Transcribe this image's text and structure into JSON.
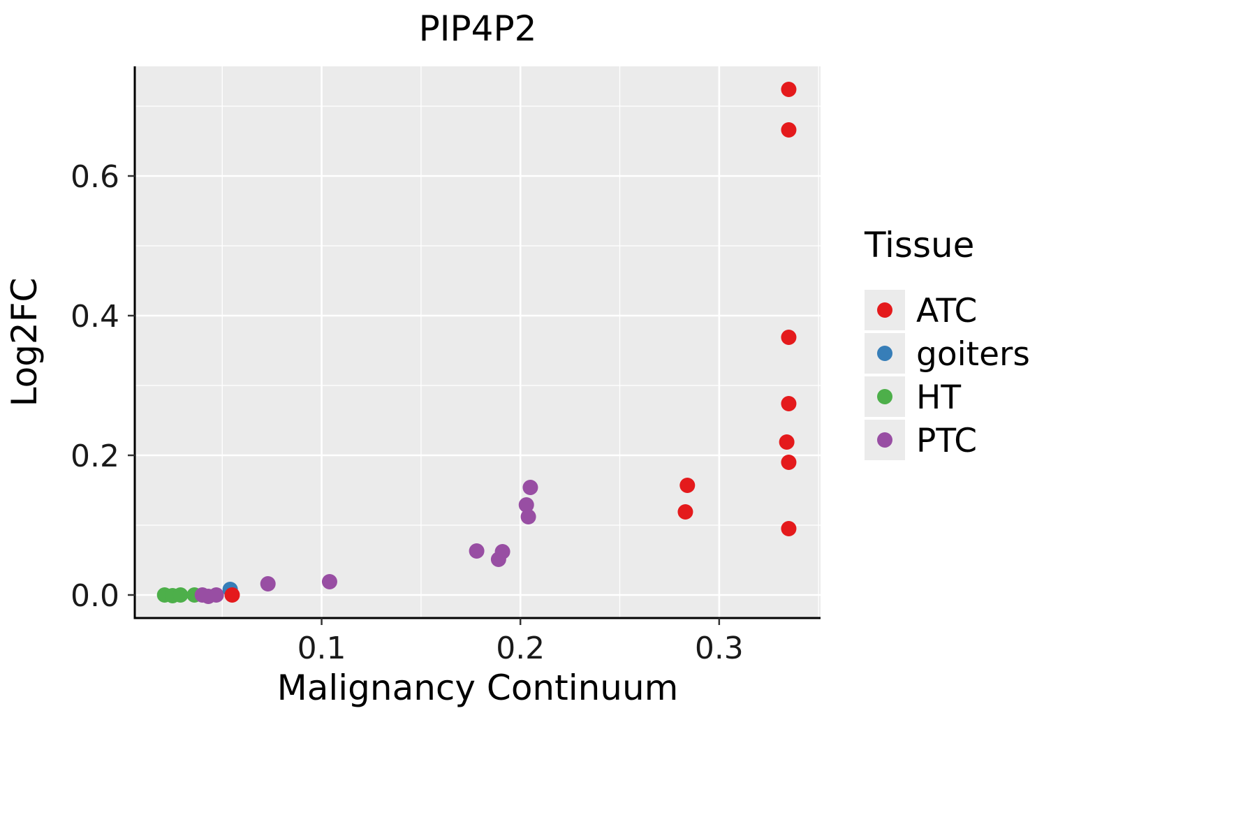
{
  "chart_data": {
    "type": "scatter",
    "title": "PIP4P2",
    "xlabel": "Malignancy Continuum",
    "ylabel": "Log2FC",
    "xlim": [
      0.006,
      0.351
    ],
    "ylim": [
      -0.033,
      0.757
    ],
    "x_ticks": [
      0.1,
      0.2,
      0.3
    ],
    "x_tick_labels": [
      "0.1",
      "0.2",
      "0.3"
    ],
    "y_ticks": [
      0.0,
      0.2,
      0.4,
      0.6
    ],
    "y_tick_labels": [
      "0.0",
      "0.2",
      "0.4",
      "0.6"
    ],
    "x_minor_ticks": [
      0.05,
      0.15,
      0.25,
      0.35
    ],
    "y_minor_ticks": [
      0.1,
      0.3,
      0.5,
      0.7
    ],
    "grid": true,
    "panel_background": "#EBEBEB",
    "gridline_color": "#FFFFFF",
    "axis_line_color": "#000000",
    "legend_title": "Tissue",
    "legend_position": "right",
    "legend_key_background": "#EBEBEB",
    "series": [
      {
        "name": "ATC",
        "color": "#E41A1C",
        "points": [
          [
            0.055,
            0.0
          ],
          [
            0.283,
            0.119
          ],
          [
            0.284,
            0.157
          ],
          [
            0.335,
            0.095
          ],
          [
            0.335,
            0.19
          ],
          [
            0.334,
            0.219
          ],
          [
            0.335,
            0.274
          ],
          [
            0.335,
            0.369
          ],
          [
            0.335,
            0.666
          ],
          [
            0.335,
            0.724
          ]
        ]
      },
      {
        "name": "goiters",
        "color": "#377EB8",
        "points": [
          [
            0.054,
            0.008
          ]
        ]
      },
      {
        "name": "HT",
        "color": "#4DAF4A",
        "points": [
          [
            0.021,
            0.0
          ],
          [
            0.025,
            -0.001
          ],
          [
            0.029,
            0.0
          ],
          [
            0.036,
            0.0
          ]
        ]
      },
      {
        "name": "PTC",
        "color": "#984EA3",
        "points": [
          [
            0.04,
            0.0
          ],
          [
            0.043,
            -0.002
          ],
          [
            0.047,
            0.0
          ],
          [
            0.073,
            0.016
          ],
          [
            0.104,
            0.019
          ],
          [
            0.178,
            0.063
          ],
          [
            0.189,
            0.051
          ],
          [
            0.191,
            0.062
          ],
          [
            0.203,
            0.129
          ],
          [
            0.204,
            0.112
          ],
          [
            0.205,
            0.154
          ]
        ]
      }
    ]
  }
}
